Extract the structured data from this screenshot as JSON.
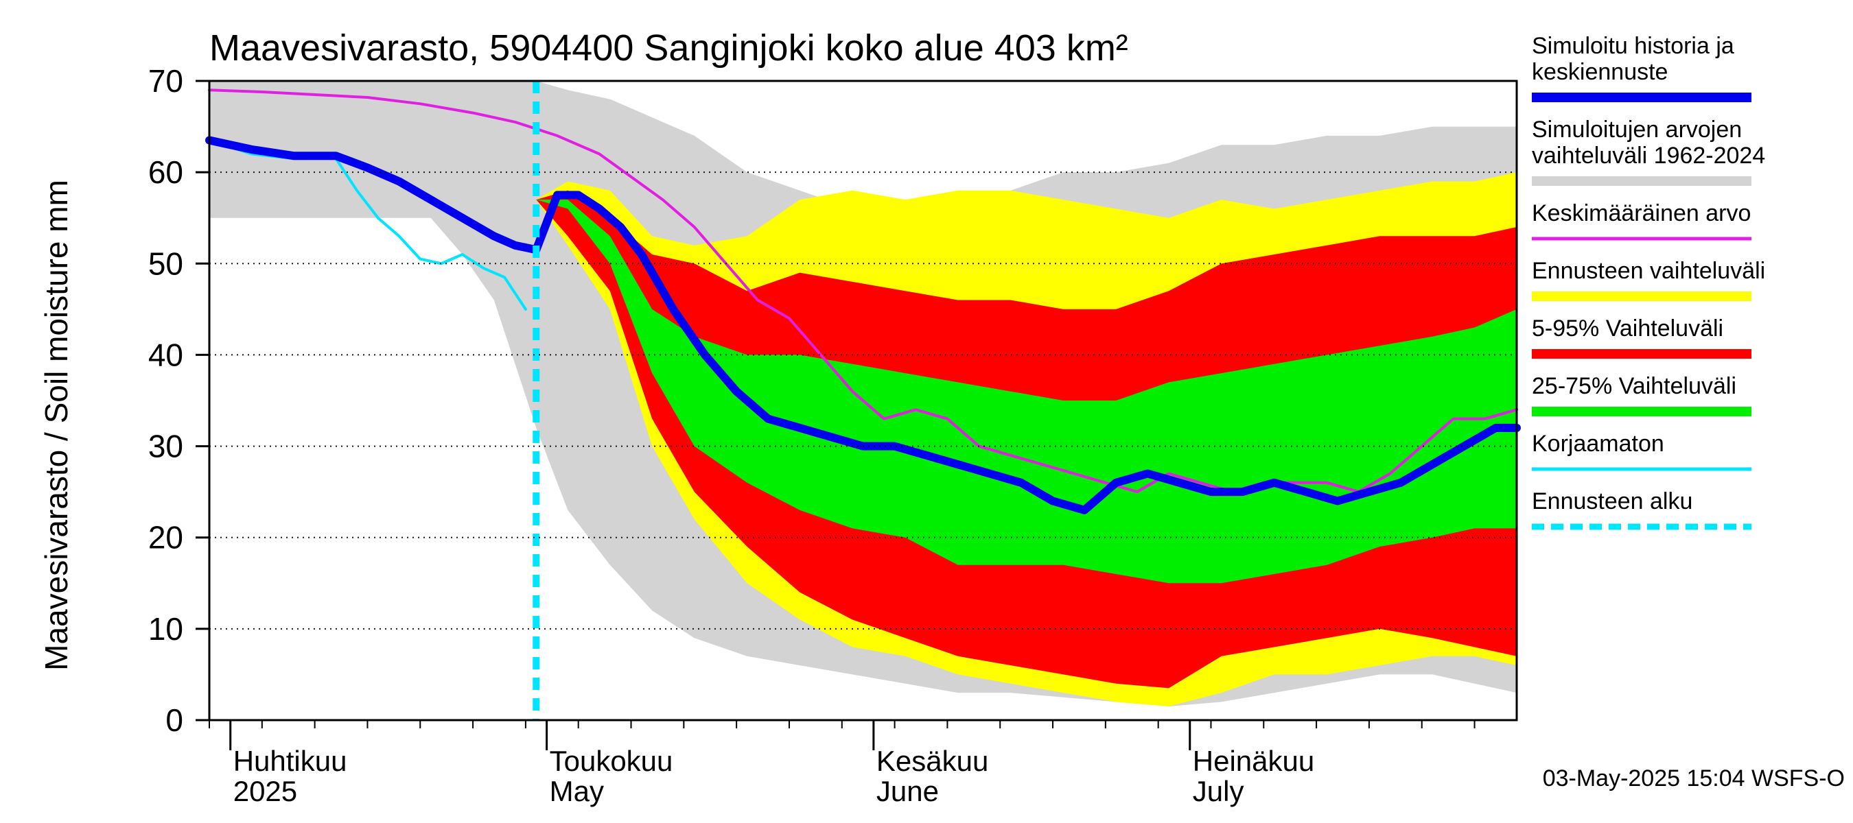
{
  "chart_data": {
    "type": "area",
    "title": "Maavesivarasto, 5904400 Sanginjoki koko alue 403 km²",
    "ylabel": "Maavesivarasto / Soil moisture   mm",
    "ylim": [
      0,
      70
    ],
    "y_ticks": [
      "0",
      "10",
      "20",
      "30",
      "40",
      "50",
      "60",
      "70"
    ],
    "x_start": "2025-03-30",
    "x_end": "2025-08-01",
    "forecast_start": "2025-04-30",
    "month_labels": [
      {
        "date": "2025-04-01",
        "fi": "Huhtikuu",
        "en": "2025"
      },
      {
        "date": "2025-05-01",
        "fi": "Toukokuu",
        "en": "May"
      },
      {
        "date": "2025-06-01",
        "fi": "Kesäkuu",
        "en": "June"
      },
      {
        "date": "2025-07-01",
        "fi": "Heinäkuu",
        "en": "July"
      }
    ],
    "timestamp": "03-May-2025 15:04 WSFS-O",
    "colors": {
      "history": "#0000ee",
      "range_hist": "#d3d3d3",
      "mean": "#e020e0",
      "forecast_range": "#ffff00",
      "p5_95": "#ff0000",
      "p25_75": "#00ee00",
      "uncorrected": "#00e5ff",
      "forecast_start": "#00e5ff"
    },
    "series": [
      {
        "name": "Simuloitujen arvojen vaihteluväli 1962-2024",
        "kind": "band",
        "x": [
          "2025-03-30",
          "2025-04-05",
          "2025-04-10",
          "2025-04-15",
          "2025-04-20",
          "2025-04-23",
          "2025-04-26",
          "2025-04-30",
          "2025-05-03",
          "2025-05-07",
          "2025-05-11",
          "2025-05-15",
          "2025-05-20",
          "2025-05-25",
          "2025-05-30",
          "2025-06-04",
          "2025-06-09",
          "2025-06-14",
          "2025-06-19",
          "2025-06-24",
          "2025-06-29",
          "2025-07-04",
          "2025-07-09",
          "2025-07-14",
          "2025-07-19",
          "2025-07-24",
          "2025-07-28",
          "2025-08-01"
        ],
        "lower": [
          55,
          55,
          55,
          55,
          55,
          51,
          46,
          32,
          23,
          17,
          12,
          9,
          7,
          6,
          5,
          4,
          3,
          3,
          2.5,
          2,
          1.5,
          2,
          3,
          4,
          5,
          5,
          4,
          3
        ],
        "upper": [
          70,
          70,
          70,
          70,
          70,
          70,
          70,
          70,
          69,
          68,
          66,
          64,
          60,
          58,
          56,
          56,
          56,
          58,
          60,
          60,
          61,
          63,
          63,
          64,
          64,
          65,
          65,
          65
        ]
      },
      {
        "name": "Ennusteen vaihteluväli",
        "kind": "band",
        "x": [
          "2025-04-30",
          "2025-05-03",
          "2025-05-07",
          "2025-05-11",
          "2025-05-15",
          "2025-05-20",
          "2025-05-25",
          "2025-05-30",
          "2025-06-04",
          "2025-06-09",
          "2025-06-14",
          "2025-06-19",
          "2025-06-24",
          "2025-06-29",
          "2025-07-04",
          "2025-07-09",
          "2025-07-14",
          "2025-07-19",
          "2025-07-24",
          "2025-07-28",
          "2025-08-01"
        ],
        "lower": [
          57,
          52,
          45,
          30,
          22,
          15,
          11,
          8,
          7,
          5,
          4,
          3,
          2,
          1.5,
          3,
          5,
          5,
          6,
          7,
          7,
          6
        ],
        "upper": [
          57,
          59,
          58,
          53,
          52,
          53,
          57,
          58,
          57,
          58,
          58,
          57,
          56,
          55,
          57,
          56,
          57,
          58,
          59,
          59,
          60
        ]
      },
      {
        "name": "5-95% Vaihteluväli",
        "kind": "band",
        "x": [
          "2025-04-30",
          "2025-05-03",
          "2025-05-07",
          "2025-05-11",
          "2025-05-15",
          "2025-05-20",
          "2025-05-25",
          "2025-05-30",
          "2025-06-04",
          "2025-06-09",
          "2025-06-14",
          "2025-06-19",
          "2025-06-24",
          "2025-06-29",
          "2025-07-04",
          "2025-07-09",
          "2025-07-14",
          "2025-07-19",
          "2025-07-24",
          "2025-07-28",
          "2025-08-01"
        ],
        "lower": [
          57,
          53,
          47,
          33,
          25,
          19,
          14,
          11,
          9,
          7,
          6,
          5,
          4,
          3.5,
          7,
          8,
          9,
          10,
          9,
          8,
          7
        ],
        "upper": [
          57,
          58,
          55,
          51,
          50,
          47,
          49,
          48,
          47,
          46,
          46,
          45,
          45,
          47,
          50,
          51,
          52,
          53,
          53,
          53,
          54
        ]
      },
      {
        "name": "25-75% Vaihteluväli",
        "kind": "band",
        "x": [
          "2025-04-30",
          "2025-05-03",
          "2025-05-07",
          "2025-05-11",
          "2025-05-15",
          "2025-05-20",
          "2025-05-25",
          "2025-05-30",
          "2025-06-04",
          "2025-06-09",
          "2025-06-14",
          "2025-06-19",
          "2025-06-24",
          "2025-06-29",
          "2025-07-04",
          "2025-07-09",
          "2025-07-14",
          "2025-07-19",
          "2025-07-24",
          "2025-07-28",
          "2025-08-01"
        ],
        "lower": [
          57,
          56,
          50,
          38,
          30,
          26,
          23,
          21,
          20,
          17,
          17,
          17,
          16,
          15,
          15,
          16,
          17,
          19,
          20,
          21,
          21
        ],
        "upper": [
          57,
          57,
          53,
          45,
          42,
          40,
          40,
          39,
          38,
          37,
          36,
          35,
          35,
          37,
          38,
          39,
          40,
          41,
          42,
          43,
          45
        ]
      },
      {
        "name": "Keskimääräinen arvo",
        "kind": "line",
        "x": [
          "2025-03-30",
          "2025-04-04",
          "2025-04-09",
          "2025-04-14",
          "2025-04-19",
          "2025-04-24",
          "2025-04-28",
          "2025-05-02",
          "2025-05-06",
          "2025-05-09",
          "2025-05-12",
          "2025-05-15",
          "2025-05-18",
          "2025-05-21",
          "2025-05-24",
          "2025-05-27",
          "2025-05-30",
          "2025-06-02",
          "2025-06-05",
          "2025-06-08",
          "2025-06-11",
          "2025-06-14",
          "2025-06-17",
          "2025-06-20",
          "2025-06-23",
          "2025-06-26",
          "2025-06-29",
          "2025-07-02",
          "2025-07-05",
          "2025-07-08",
          "2025-07-11",
          "2025-07-14",
          "2025-07-17",
          "2025-07-20",
          "2025-07-23",
          "2025-07-26",
          "2025-07-29",
          "2025-08-01"
        ],
        "values": [
          69,
          68.8,
          68.5,
          68.2,
          67.5,
          66.5,
          65.5,
          64,
          62,
          59.5,
          57,
          54,
          50,
          46,
          44,
          40,
          36,
          33,
          34,
          33,
          30,
          29,
          28,
          27,
          26,
          25,
          27,
          26,
          25,
          26,
          26,
          26,
          25,
          27,
          30,
          33,
          33,
          34
        ]
      },
      {
        "name": "Simuloitu historia ja keskiennuste",
        "kind": "line",
        "x": [
          "2025-03-30",
          "2025-04-03",
          "2025-04-07",
          "2025-04-11",
          "2025-04-14",
          "2025-04-17",
          "2025-04-20",
          "2025-04-23",
          "2025-04-26",
          "2025-04-28",
          "2025-04-30",
          "2025-05-02",
          "2025-05-04",
          "2025-05-06",
          "2025-05-08",
          "2025-05-10",
          "2025-05-13",
          "2025-05-16",
          "2025-05-19",
          "2025-05-22",
          "2025-05-25",
          "2025-05-28",
          "2025-05-31",
          "2025-06-03",
          "2025-06-06",
          "2025-06-09",
          "2025-06-12",
          "2025-06-15",
          "2025-06-18",
          "2025-06-21",
          "2025-06-24",
          "2025-06-27",
          "2025-06-30",
          "2025-07-03",
          "2025-07-06",
          "2025-07-09",
          "2025-07-12",
          "2025-07-15",
          "2025-07-18",
          "2025-07-21",
          "2025-07-24",
          "2025-07-27",
          "2025-07-30",
          "2025-08-01"
        ],
        "values": [
          63.5,
          62.5,
          61.8,
          61.8,
          60.5,
          59,
          57,
          55,
          53,
          52,
          51.5,
          57.5,
          57.5,
          56,
          54,
          51,
          45,
          40,
          36,
          33,
          32,
          31,
          30,
          30,
          29,
          28,
          27,
          26,
          24,
          23,
          26,
          27,
          26,
          25,
          25,
          26,
          25,
          24,
          25,
          26,
          28,
          30,
          32,
          32
        ]
      },
      {
        "name": "Korjaamaton",
        "kind": "line",
        "x": [
          "2025-03-30",
          "2025-04-03",
          "2025-04-07",
          "2025-04-11",
          "2025-04-13",
          "2025-04-15",
          "2025-04-17",
          "2025-04-19",
          "2025-04-21",
          "2025-04-23",
          "2025-04-25",
          "2025-04-27",
          "2025-04-29"
        ],
        "values": [
          63.5,
          62,
          61.5,
          61.5,
          58,
          55,
          53,
          50.5,
          50,
          51,
          49.5,
          48.5,
          45
        ]
      }
    ],
    "legend": [
      {
        "label": "Simuloitu historia ja\nkeskiennuste",
        "color": "#0000ee",
        "style": "thick"
      },
      {
        "label": "Simuloitujen arvojen\nvaihteluväli 1962-2024",
        "color": "#d3d3d3",
        "style": "thick"
      },
      {
        "label": "Keskimääräinen arvo",
        "color": "#e020e0",
        "style": "thin"
      },
      {
        "label": "Ennusteen vaihteluväli",
        "color": "#ffff00",
        "style": "thick"
      },
      {
        "label": "5-95% Vaihteluväli",
        "color": "#ff0000",
        "style": "thick"
      },
      {
        "label": "25-75% Vaihteluväli",
        "color": "#00ee00",
        "style": "thick"
      },
      {
        "label": "Korjaamaton",
        "color": "#00e5ff",
        "style": "thin"
      },
      {
        "label": "Ennusteen alku",
        "color": "#00e5ff",
        "style": "dashed"
      }
    ]
  }
}
